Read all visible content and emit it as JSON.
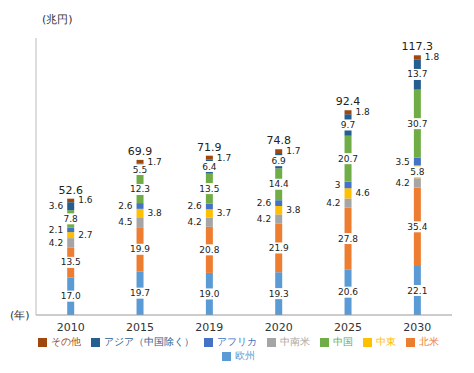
{
  "chart_data": {
    "type": "bar",
    "stacked": true,
    "data_labels": true,
    "legend": "bottom",
    "tick_labels": "x",
    "grid": false,
    "y_label": "(兆円)",
    "x_label": "(年)",
    "categories": [
      "2010",
      "2015",
      "2019",
      "2020",
      "2025",
      "2030"
    ],
    "ylim": [
      0,
      125
    ],
    "yticks": [],
    "totals": [
      52.6,
      69.9,
      71.9,
      74.8,
      92.4,
      117.3
    ],
    "series": [
      {
        "name": "欧州",
        "color": "#5b9bd5",
        "values": [
          17.0,
          19.7,
          19.0,
          19.3,
          20.6,
          22.1
        ],
        "value_labels": [
          "17.0",
          "19.7",
          "19.0",
          "19.3",
          "20.6",
          "22.1"
        ]
      },
      {
        "name": "北米",
        "color": "#ed7d31",
        "values": [
          13.5,
          19.9,
          20.8,
          21.9,
          27.8,
          35.4
        ]
      },
      {
        "name": "中南米",
        "color": "#a5a5a5",
        "values": [
          4.2,
          4.5,
          4.2,
          4.2,
          4.2,
          4.2
        ]
      },
      {
        "name": "中東",
        "color": "#ffc000",
        "values": [
          2.7,
          3.8,
          3.7,
          3.8,
          4.6,
          5.8
        ]
      },
      {
        "name": "アフリカ",
        "color": "#4472c4",
        "values": [
          2.1,
          2.6,
          2.6,
          2.6,
          3.0,
          3.5
        ]
      },
      {
        "name": "中国",
        "color": "#70ad47",
        "values": [
          7.8,
          12.3,
          13.5,
          14.4,
          20.7,
          30.7
        ]
      },
      {
        "name": "アジア（中国除く）",
        "color": "#255e91",
        "values": [
          3.6,
          5.5,
          6.4,
          6.9,
          9.7,
          13.7
        ]
      },
      {
        "name": "その他",
        "color": "#9e480e",
        "values": [
          1.6,
          1.7,
          1.7,
          1.7,
          1.8,
          1.8
        ]
      }
    ]
  }
}
